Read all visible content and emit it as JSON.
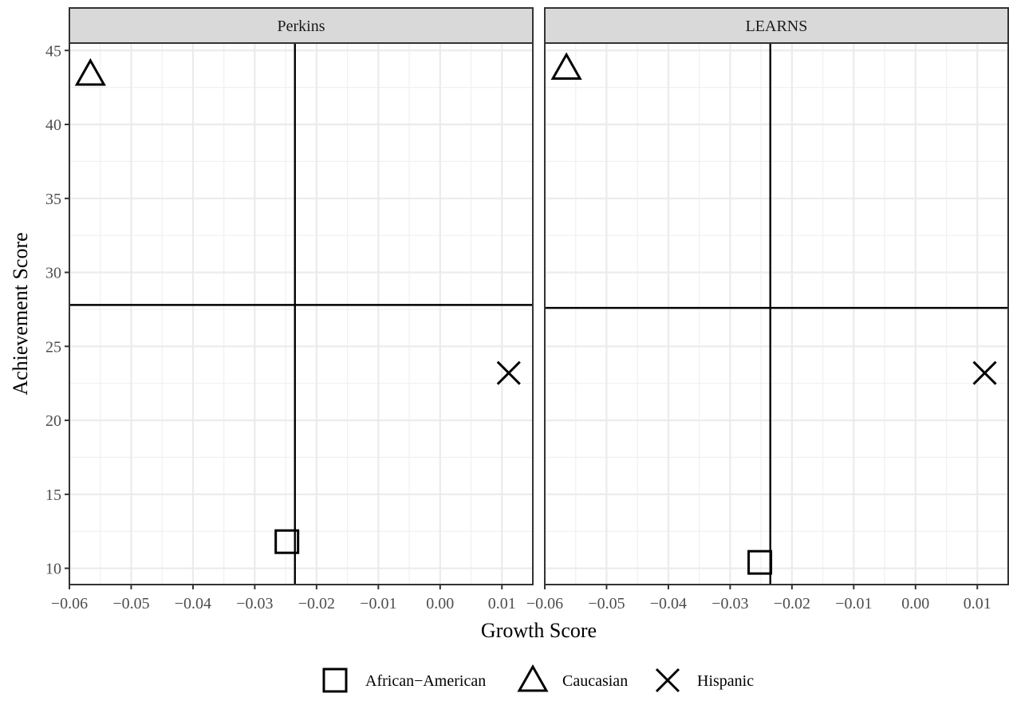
{
  "chart_data": {
    "type": "scatter",
    "xlabel": "Growth Score",
    "ylabel": "Achievement Score",
    "xlim": [
      -0.06,
      0.015
    ],
    "ylim": [
      8.9,
      45.5
    ],
    "x_ticks": [
      -0.06,
      -0.05,
      -0.04,
      -0.03,
      -0.02,
      -0.01,
      0.0,
      0.01
    ],
    "x_tick_labels": [
      "−0.06",
      "−0.05",
      "−0.04",
      "−0.03",
      "−0.02",
      "−0.01",
      "0.00",
      "0.01"
    ],
    "y_ticks": [
      10,
      15,
      20,
      25,
      30,
      35,
      40,
      45
    ],
    "y_tick_labels": [
      "10",
      "15",
      "20",
      "25",
      "30",
      "35",
      "40",
      "45"
    ],
    "grid": true,
    "legend_position": "bottom",
    "legend": [
      {
        "label": "African−American",
        "shape": "square"
      },
      {
        "label": "Caucasian",
        "shape": "triangle"
      },
      {
        "label": "Hispanic",
        "shape": "cross"
      }
    ],
    "panels": [
      {
        "title": "Perkins",
        "vline": -0.0235,
        "hline": 27.8,
        "points": [
          {
            "group": "African−American",
            "x": -0.0248,
            "y": 11.8
          },
          {
            "group": "Caucasian",
            "x": -0.0566,
            "y": 43.4
          },
          {
            "group": "Hispanic",
            "x": 0.0111,
            "y": 23.2
          }
        ]
      },
      {
        "title": "LEARNS",
        "vline": -0.0235,
        "hline": 27.6,
        "points": [
          {
            "group": "African−American",
            "x": -0.0252,
            "y": 10.4
          },
          {
            "group": "Caucasian",
            "x": -0.0565,
            "y": 43.8
          },
          {
            "group": "Hispanic",
            "x": 0.0112,
            "y": 23.2
          }
        ]
      }
    ]
  }
}
